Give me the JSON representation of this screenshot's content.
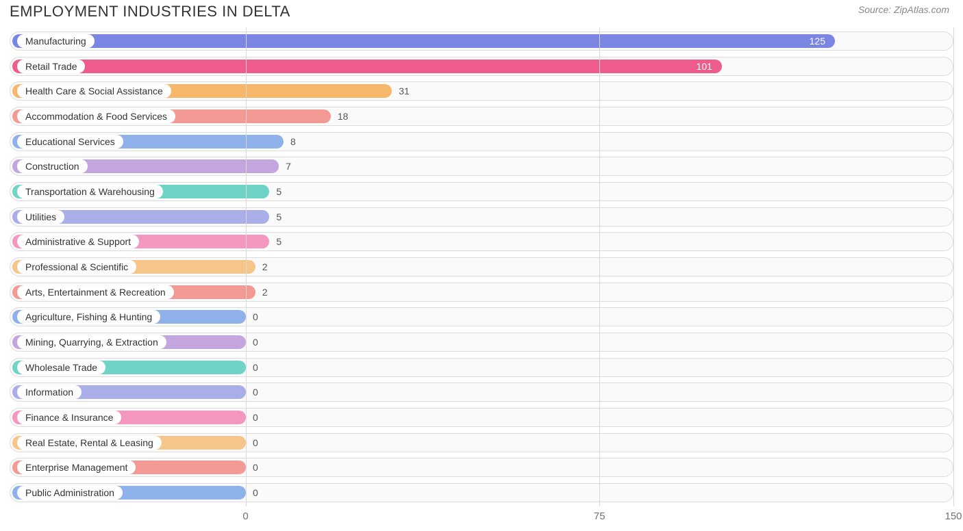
{
  "title": "EMPLOYMENT INDUSTRIES IN DELTA",
  "source": "Source: ZipAtlas.com",
  "chart": {
    "type": "bar-horizontal",
    "xmin": -50,
    "xmax": 150,
    "background": "#ffffff",
    "track_fill": "#fafafa",
    "track_border": "#dcdcdc",
    "grid_color": "#d9d9d9",
    "label_font_size": 14,
    "value_font_size": 14,
    "title_font_size": 22,
    "title_color": "#333333",
    "source_color": "#888888",
    "axis_color": "#707070",
    "x_ticks": [
      0,
      75,
      150
    ],
    "bars": [
      {
        "label": "Manufacturing",
        "value": 125,
        "color": "#7b86e2",
        "value_inside": true
      },
      {
        "label": "Retail Trade",
        "value": 101,
        "color": "#ee5d8b",
        "value_inside": true
      },
      {
        "label": "Health Care & Social Assistance",
        "value": 31,
        "color": "#f7b76b",
        "value_inside": false
      },
      {
        "label": "Accommodation & Food Services",
        "value": 18,
        "color": "#f49a94",
        "value_inside": false
      },
      {
        "label": "Educational Services",
        "value": 8,
        "color": "#8fb1ea",
        "value_inside": false
      },
      {
        "label": "Construction",
        "value": 7,
        "color": "#c3a6de",
        "value_inside": false
      },
      {
        "label": "Transportation & Warehousing",
        "value": 5,
        "color": "#6fd4c6",
        "value_inside": false
      },
      {
        "label": "Utilities",
        "value": 5,
        "color": "#a9aee8",
        "value_inside": false
      },
      {
        "label": "Administrative & Support",
        "value": 5,
        "color": "#f497c0",
        "value_inside": false
      },
      {
        "label": "Professional & Scientific",
        "value": 2,
        "color": "#f6c58a",
        "value_inside": false
      },
      {
        "label": "Arts, Entertainment & Recreation",
        "value": 2,
        "color": "#f49a94",
        "value_inside": false
      },
      {
        "label": "Agriculture, Fishing & Hunting",
        "value": 0,
        "color": "#8fb1ea",
        "value_inside": false
      },
      {
        "label": "Mining, Quarrying, & Extraction",
        "value": 0,
        "color": "#c3a6de",
        "value_inside": false
      },
      {
        "label": "Wholesale Trade",
        "value": 0,
        "color": "#6fd4c6",
        "value_inside": false
      },
      {
        "label": "Information",
        "value": 0,
        "color": "#a9aee8",
        "value_inside": false
      },
      {
        "label": "Finance & Insurance",
        "value": 0,
        "color": "#f497c0",
        "value_inside": false
      },
      {
        "label": "Real Estate, Rental & Leasing",
        "value": 0,
        "color": "#f6c58a",
        "value_inside": false
      },
      {
        "label": "Enterprise Management",
        "value": 0,
        "color": "#f49a94",
        "value_inside": false
      },
      {
        "label": "Public Administration",
        "value": 0,
        "color": "#8fb1ea",
        "value_inside": false
      }
    ]
  }
}
